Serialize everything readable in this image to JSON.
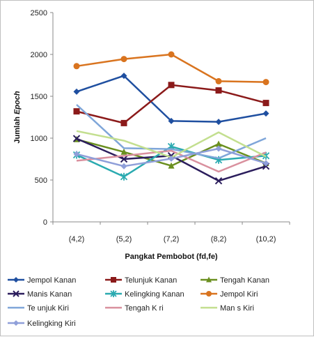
{
  "chart_data": {
    "type": "line",
    "categories": [
      "(4,2)",
      "(5,2)",
      "(7,2)",
      "(8,2)",
      "(10,2)"
    ],
    "xlabel": "Pangkat Pembobot (fd,fe)",
    "ylabel_parts": [
      "Jumlah ",
      "Epoch"
    ],
    "ylim": [
      0,
      2500
    ],
    "yticks": [
      0,
      500,
      1000,
      1500,
      2000,
      2500
    ],
    "grid": false,
    "legend_position": "bottom",
    "series": [
      {
        "name": "Jempol Kanan",
        "color": "#1f4fa0",
        "marker": "diamond",
        "values": [
          1555,
          1745,
          1205,
          1195,
          1295
        ]
      },
      {
        "name": "Telunjuk Kanan",
        "color": "#8b1a1a",
        "marker": "square",
        "values": [
          1320,
          1180,
          1635,
          1570,
          1420
        ]
      },
      {
        "name": "Tengah Kanan",
        "color": "#6a8f1f",
        "marker": "triangle",
        "values": [
          985,
          835,
          670,
          930,
          700
        ]
      },
      {
        "name": "Manis Kanan",
        "color": "#2b1d5c",
        "marker": "x",
        "values": [
          995,
          750,
          790,
          490,
          665
        ]
      },
      {
        "name": "Kelingking Kanan",
        "color": "#2aaab0",
        "marker": "star",
        "values": [
          800,
          540,
          900,
          740,
          790
        ]
      },
      {
        "name": "Jempol Kiri",
        "color": "#d9741f",
        "marker": "circle",
        "values": [
          1860,
          1945,
          2000,
          1680,
          1670
        ]
      },
      {
        "name": "Te unjuk Kiri",
        "color": "#7fa6d9",
        "marker": "none",
        "values": [
          1400,
          880,
          870,
          760,
          1000
        ]
      },
      {
        "name": "Tengah K ri",
        "color": "#d9909e",
        "marker": "none",
        "values": [
          730,
          790,
          850,
          600,
          830
        ]
      },
      {
        "name": "Man s Kiri",
        "color": "#c3df8f",
        "marker": "none",
        "values": [
          1085,
          970,
          770,
          1070,
          780
        ]
      },
      {
        "name": "Kelingking Kiri",
        "color": "#8f9fd9",
        "marker": "diamond",
        "values": [
          810,
          665,
          755,
          875,
          700
        ]
      }
    ]
  }
}
